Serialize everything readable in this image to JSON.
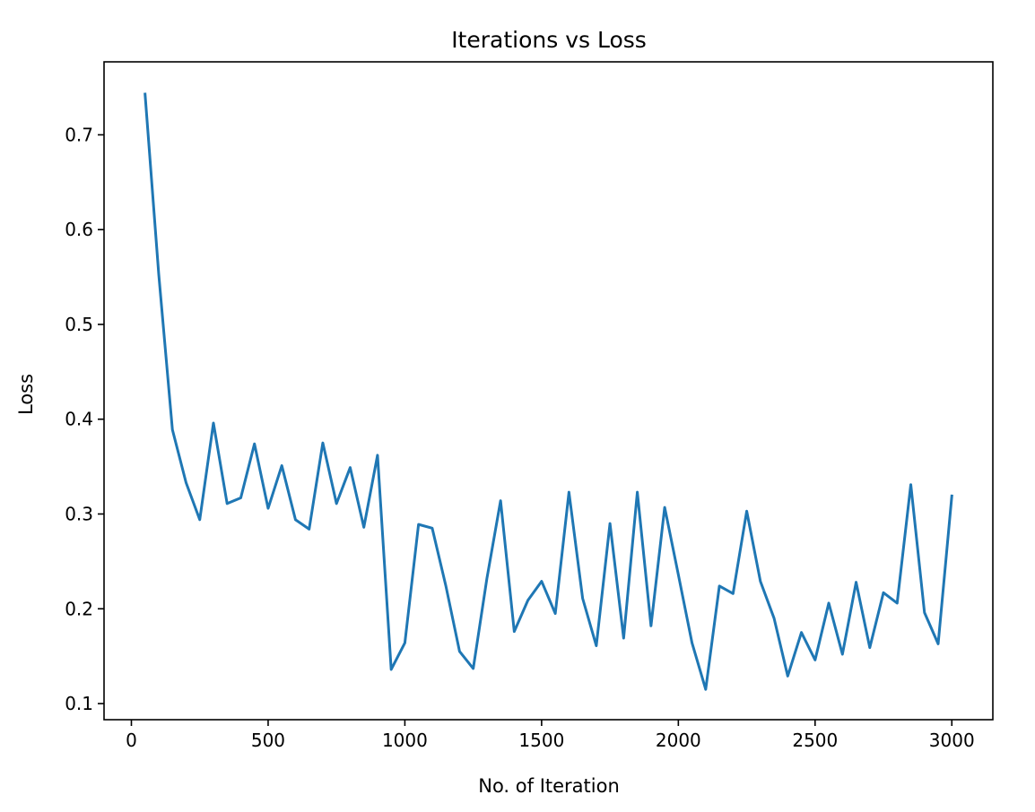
{
  "chart_data": {
    "type": "line",
    "title": "Iterations vs Loss",
    "xlabel": "No. of Iteration",
    "ylabel": "Loss",
    "xlim": [
      -100,
      3150
    ],
    "ylim": [
      0.083,
      0.777
    ],
    "xticks": [
      0,
      500,
      1000,
      1500,
      2000,
      2500,
      3000
    ],
    "yticks": [
      0.1,
      0.2,
      0.3,
      0.4,
      0.5,
      0.6,
      0.7
    ],
    "grid": false,
    "legend": "none",
    "color": "#1f77b4",
    "series": [
      {
        "x": [
          50,
          100,
          150,
          200,
          250,
          300,
          350,
          400,
          450,
          500,
          550,
          600,
          650,
          700,
          750,
          800,
          850,
          900,
          950,
          1000,
          1050,
          1100,
          1150,
          1200,
          1250,
          1300,
          1350,
          1400,
          1450,
          1500,
          1550,
          1600,
          1650,
          1700,
          1750,
          1800,
          1850,
          1900,
          1950,
          2000,
          2050,
          2100,
          2150,
          2200,
          2250,
          2300,
          2350,
          2400,
          2450,
          2500,
          2550,
          2600,
          2650,
          2700,
          2750,
          2800,
          2850,
          2900,
          2950,
          3000
        ],
        "values": [
          0.743,
          0.553,
          0.389,
          0.333,
          0.294,
          0.396,
          0.311,
          0.317,
          0.374,
          0.306,
          0.351,
          0.294,
          0.284,
          0.375,
          0.311,
          0.349,
          0.286,
          0.362,
          0.136,
          0.164,
          0.289,
          0.285,
          0.224,
          0.155,
          0.137,
          0.232,
          0.314,
          0.176,
          0.209,
          0.229,
          0.195,
          0.323,
          0.211,
          0.161,
          0.29,
          0.169,
          0.323,
          0.182,
          0.307,
          0.236,
          0.164,
          0.115,
          0.224,
          0.216,
          0.303,
          0.229,
          0.19,
          0.129,
          0.175,
          0.146,
          0.206,
          0.152,
          0.228,
          0.159,
          0.217,
          0.206,
          0.331,
          0.196,
          0.163,
          0.319
        ]
      }
    ]
  }
}
